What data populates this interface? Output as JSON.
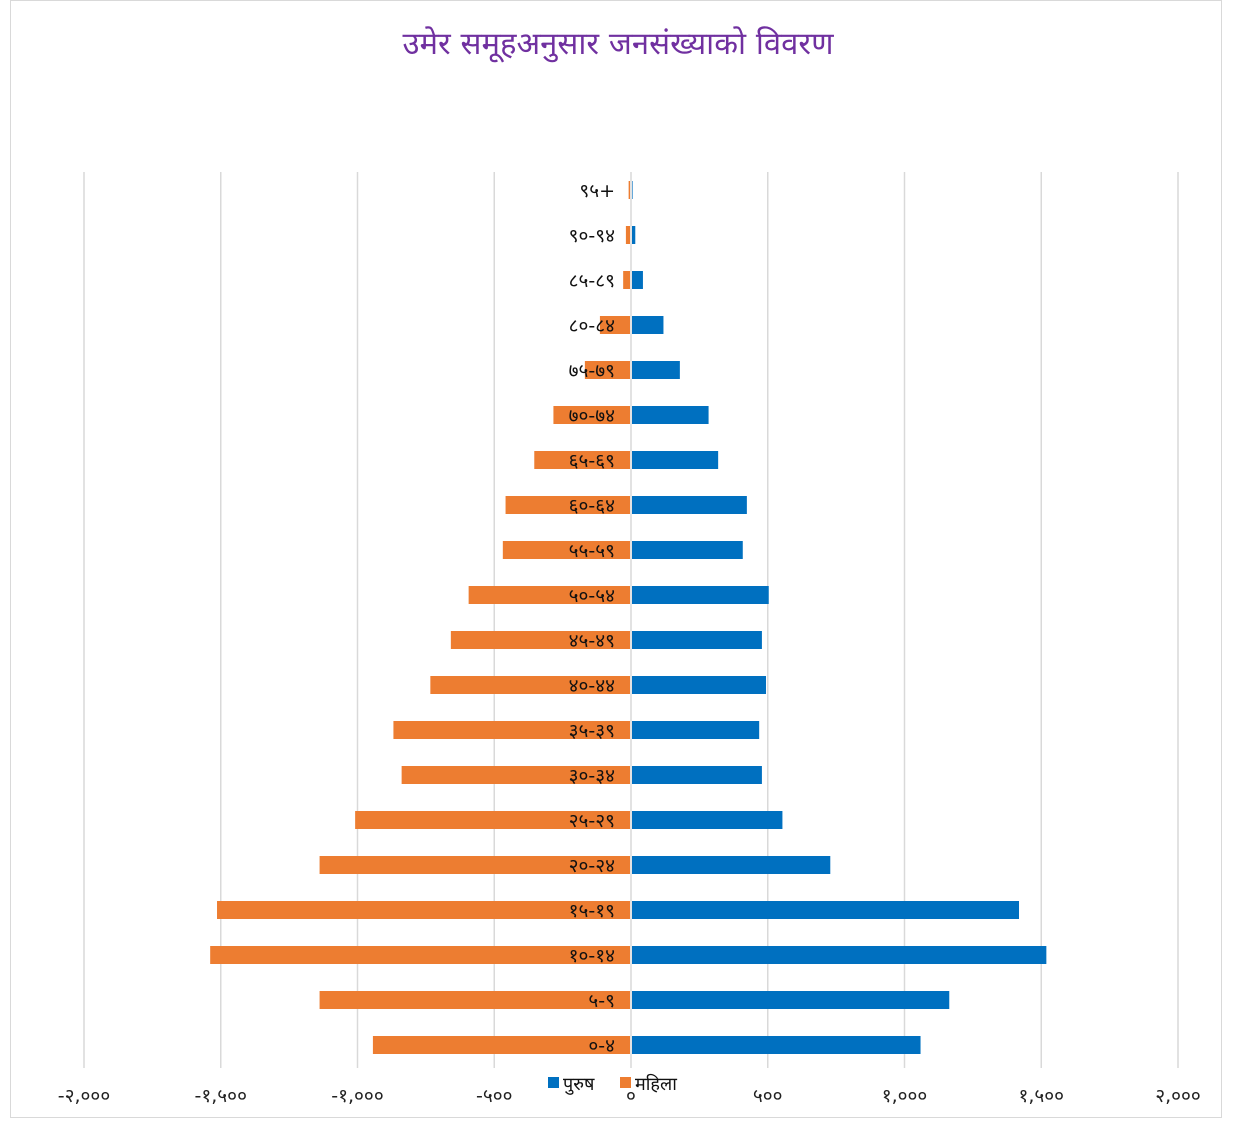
{
  "chart_data": {
    "type": "bar",
    "orientation": "horizontal",
    "title": "उमेर समूहअनुसार जनसंख्याको विवरण",
    "categories": [
      "०-४",
      "५-९",
      "१०-१४",
      "१५-१९",
      "२०-२४",
      "२५-२९",
      "३०-३४",
      "३५-३९",
      "४०-४४",
      "४५-४९",
      "५०-५४",
      "५५-५९",
      "६०-६४",
      "६५-६९",
      "७०-७४",
      "७५-७९",
      "८०-८४",
      "८५-८९",
      "९०-९४",
      "९५+"
    ],
    "series": [
      {
        "name": "पुरुष",
        "color": "#0070c0",
        "values": [
          1055,
          1160,
          1515,
          1415,
          725,
          550,
          475,
          465,
          490,
          475,
          500,
          405,
          420,
          315,
          280,
          175,
          115,
          40,
          12,
          0
        ]
      },
      {
        "name": "महिला",
        "color": "#ed7d31",
        "values": [
          -940,
          -1135,
          -1535,
          -1510,
          -1135,
          -1005,
          -835,
          -865,
          -730,
          -655,
          -590,
          -465,
          -455,
          -350,
          -280,
          -165,
          -110,
          -25,
          -15,
          -5
        ]
      }
    ],
    "xlim": [
      -2000,
      2000
    ],
    "xticks": [
      -2000,
      -1500,
      -1000,
      -500,
      0,
      500,
      1000,
      1500,
      2000
    ],
    "xtick_labels": [
      "-२,०००",
      "-१,५००",
      "-१,०००",
      "-५००",
      "०",
      "५००",
      "१,०००",
      "१,५००",
      "२,०००"
    ],
    "grid": "vertical",
    "legend": "bottom-center",
    "xlabel": "",
    "ylabel": ""
  }
}
